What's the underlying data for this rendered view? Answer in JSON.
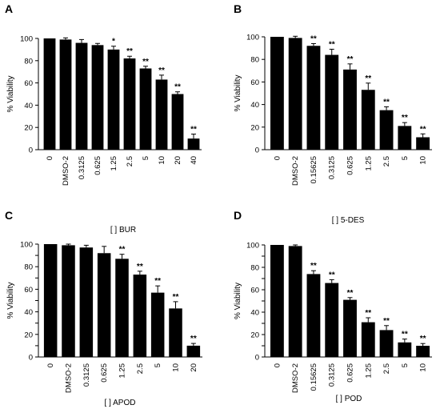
{
  "chart_data": [
    {
      "type": "bar",
      "panel": "A",
      "ylabel": "% Viability",
      "xlabel": "[ ] BUR",
      "ylim": [
        0,
        100
      ],
      "yticks": [
        0,
        20,
        40,
        60,
        80,
        100
      ],
      "categories": [
        "0",
        "DMSO-2",
        "0.3125",
        "0.625",
        "1.25",
        "2.5",
        "5",
        "10",
        "20",
        "40"
      ],
      "values": [
        100,
        99,
        96,
        94,
        90,
        82,
        73,
        63,
        50,
        10
      ],
      "errors": [
        0,
        1.5,
        3,
        1.5,
        3,
        2,
        2,
        4,
        2,
        4
      ],
      "significance": [
        "",
        "",
        "",
        "",
        "*",
        "**",
        "**",
        "**",
        "**",
        "**"
      ]
    },
    {
      "type": "bar",
      "panel": "B",
      "ylabel": "% Viability",
      "xlabel": "[ ] 5-DES",
      "ylim": [
        0,
        100
      ],
      "yticks": [
        0,
        20,
        40,
        60,
        80,
        100
      ],
      "categories": [
        "0",
        "DMSO-2",
        "0.15625",
        "0.3125",
        "0.625",
        "1.25",
        "2.5",
        "5",
        "10"
      ],
      "values": [
        100,
        99,
        92,
        84,
        71,
        53,
        35,
        21,
        11
      ],
      "errors": [
        0,
        1.5,
        2,
        5,
        5,
        6,
        3,
        3,
        3
      ],
      "significance": [
        "",
        "",
        "**",
        "**",
        "**",
        "**",
        "**",
        "**",
        "**"
      ]
    },
    {
      "type": "bar",
      "panel": "C",
      "ylabel": "% Viability",
      "xlabel": "[ ] APOD",
      "ylim": [
        0,
        100
      ],
      "yticks": [
        0,
        10,
        20,
        30,
        40,
        50,
        60,
        70,
        80,
        90,
        100
      ],
      "categories": [
        "0",
        "DMSO-2",
        "0.3125",
        "0.625",
        "1.25",
        "2.5",
        "5",
        "10",
        "20"
      ],
      "values": [
        100,
        99,
        97,
        92,
        87,
        73,
        57,
        43,
        10
      ],
      "errors": [
        0,
        1,
        2,
        6,
        4,
        3,
        6,
        6,
        2
      ],
      "significance": [
        "",
        "",
        "",
        "",
        "**",
        "**",
        "**",
        "**",
        "**"
      ]
    },
    {
      "type": "bar",
      "panel": "D",
      "ylabel": "% Viability",
      "xlabel": "[ ] POD",
      "ylim": [
        0,
        100
      ],
      "yticks": [
        0,
        10,
        20,
        30,
        40,
        50,
        60,
        70,
        80,
        90,
        100
      ],
      "categories": [
        "0",
        "DMSO-2",
        "0.15625",
        "0.3125",
        "0.625",
        "1.25",
        "2.5",
        "5",
        "10"
      ],
      "values": [
        100,
        99,
        74,
        66,
        51,
        31,
        24,
        13,
        10
      ],
      "errors": [
        0,
        1,
        3,
        3,
        2,
        4,
        4,
        3,
        2
      ],
      "significance": [
        "",
        "",
        "**",
        "**",
        "**",
        "**",
        "**",
        "**",
        "**"
      ]
    }
  ]
}
